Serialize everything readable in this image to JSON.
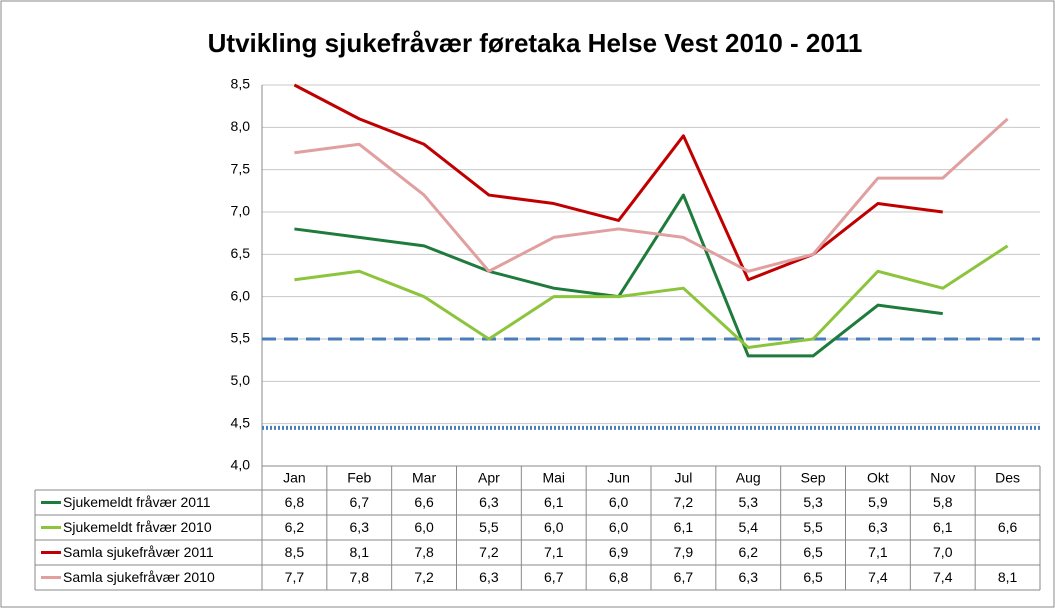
{
  "chart_data": {
    "type": "line",
    "title": "Utvikling sjukefråvær føretaka Helse Vest 2010 - 2011",
    "categories": [
      "Jan",
      "Feb",
      "Mar",
      "Apr",
      "Mai",
      "Jun",
      "Jul",
      "Aug",
      "Sep",
      "Okt",
      "Nov",
      "Des"
    ],
    "series": [
      {
        "name": "Sjukemeldt fråvær 2011",
        "color": "#1e7b3c",
        "values": [
          6.8,
          6.7,
          6.6,
          6.3,
          6.1,
          6.0,
          7.2,
          5.3,
          5.3,
          5.9,
          5.8,
          null
        ],
        "value_labels": [
          "6,8",
          "6,7",
          "6,6",
          "6,3",
          "6,1",
          "6,0",
          "7,2",
          "5,3",
          "5,3",
          "5,9",
          "5,8",
          null
        ]
      },
      {
        "name": "Sjukemeldt fråvær 2010",
        "color": "#8cc43c",
        "values": [
          6.2,
          6.3,
          6.0,
          5.5,
          6.0,
          6.0,
          6.1,
          5.4,
          5.5,
          6.3,
          6.1,
          6.6
        ],
        "value_labels": [
          "6,2",
          "6,3",
          "6,0",
          "5,5",
          "6,0",
          "6,0",
          "6,1",
          "5,4",
          "5,5",
          "6,3",
          "6,1",
          "6,6"
        ]
      },
      {
        "name": "Samla sjukefråvær  2011",
        "color": "#c00000",
        "values": [
          8.5,
          8.1,
          7.8,
          7.2,
          7.1,
          6.9,
          7.9,
          6.2,
          6.5,
          7.1,
          7.0,
          null
        ],
        "value_labels": [
          "8,5",
          "8,1",
          "7,8",
          "7,2",
          "7,1",
          "6,9",
          "7,9",
          "6,2",
          "6,5",
          "7,1",
          "7,0",
          null
        ]
      },
      {
        "name": "Samla sjukefråvær  2010",
        "color": "#e0a0a0",
        "values": [
          7.7,
          7.8,
          7.2,
          6.3,
          6.7,
          6.8,
          6.7,
          6.3,
          6.5,
          7.4,
          7.4,
          8.1
        ],
        "value_labels": [
          "7,7",
          "7,8",
          "7,2",
          "6,3",
          "6,7",
          "6,8",
          "6,7",
          "6,3",
          "6,5",
          "7,4",
          "7,4",
          "8,1"
        ]
      }
    ],
    "ylim": [
      4.0,
      8.5
    ],
    "yticks": [
      {
        "value": 4.0,
        "label": "4,0"
      },
      {
        "value": 4.5,
        "label": "4,5"
      },
      {
        "value": 5.0,
        "label": "5,0"
      },
      {
        "value": 5.5,
        "label": "5,5"
      },
      {
        "value": 6.0,
        "label": "6,0"
      },
      {
        "value": 6.5,
        "label": "6,5"
      },
      {
        "value": 7.0,
        "label": "7,0"
      },
      {
        "value": 7.5,
        "label": "7,5"
      },
      {
        "value": 8.0,
        "label": "8,0"
      },
      {
        "value": 8.5,
        "label": "8,5"
      }
    ],
    "grid": true,
    "reference_lines": [
      {
        "value": 5.5,
        "style": "dashed",
        "color": "#4a7ebb"
      },
      {
        "value": 4.45,
        "style": "dotted",
        "color": "#4a7ebb"
      }
    ]
  }
}
